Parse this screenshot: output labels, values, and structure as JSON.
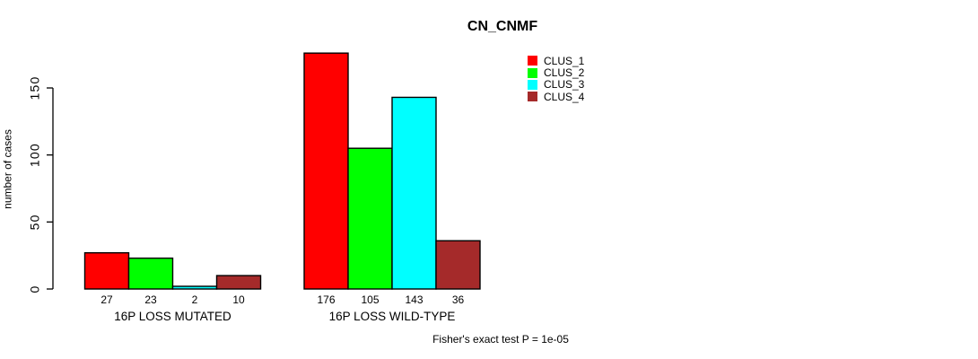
{
  "title": "CN_CNMF",
  "footer": "Fisher's exact test P = 1e-05",
  "chart_data": {
    "type": "bar",
    "title": "CN_CNMF",
    "xlabel": "",
    "ylabel": "number of cases",
    "ylim": [
      0,
      183
    ],
    "yticks": [
      0,
      50,
      100,
      150
    ],
    "grid": false,
    "bar_border_color": "#000000",
    "categories": [
      "16P LOSS MUTATED",
      "16P LOSS WILD-TYPE"
    ],
    "groups": [
      {
        "label": "16P LOSS MUTATED",
        "values": [
          27,
          23,
          2,
          10
        ],
        "value_labels": [
          "27",
          "23",
          "2",
          "10"
        ]
      },
      {
        "label": "16P LOSS WILD-TYPE",
        "values": [
          176,
          105,
          143,
          36
        ],
        "value_labels": [
          "176",
          "105",
          "143",
          "36"
        ]
      }
    ],
    "series": [
      {
        "name": "CLUS_1",
        "color": "#FF0000"
      },
      {
        "name": "CLUS_2",
        "color": "#00FF00"
      },
      {
        "name": "CLUS_3",
        "color": "#00FFFF"
      },
      {
        "name": "CLUS_4",
        "color": "#A52A2A"
      }
    ],
    "legend_position": "top-center",
    "annotation": "Fisher's exact test P = 1e-05"
  }
}
